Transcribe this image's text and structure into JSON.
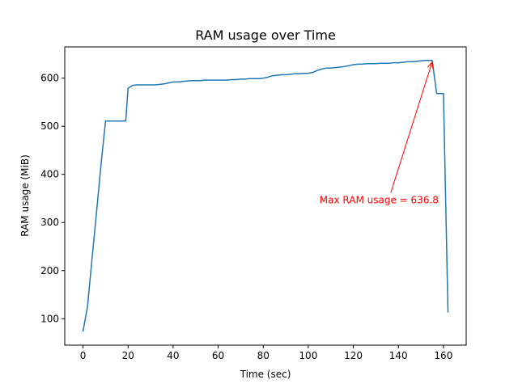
{
  "chart_data": {
    "type": "line",
    "title": "RAM usage over Time",
    "xlabel": "Time (sec)",
    "ylabel": "RAM usage (MiB)",
    "xlim": [
      -8.1,
      170.1
    ],
    "ylim": [
      45,
      665
    ],
    "xticks": [
      0,
      20,
      40,
      60,
      80,
      100,
      120,
      140,
      160
    ],
    "yticks": [
      100,
      200,
      300,
      400,
      500,
      600
    ],
    "grid": false,
    "legend": "none",
    "series": [
      {
        "color": "#1f77b4",
        "x": [
          0,
          2,
          4,
          6,
          8,
          10,
          12,
          14,
          16,
          18,
          19,
          20,
          22,
          24,
          26,
          28,
          30,
          32,
          34,
          36,
          38,
          40,
          42,
          44,
          46,
          48,
          50,
          52,
          54,
          56,
          58,
          60,
          62,
          64,
          66,
          68,
          70,
          72,
          74,
          76,
          78,
          80,
          82,
          84,
          86,
          88,
          90,
          92,
          94,
          96,
          98,
          100,
          102,
          104,
          106,
          108,
          110,
          112,
          114,
          116,
          118,
          120,
          122,
          124,
          126,
          128,
          130,
          132,
          134,
          136,
          138,
          140,
          142,
          144,
          146,
          148,
          150,
          152,
          154,
          155,
          157,
          159,
          160,
          162
        ],
        "y": [
          73,
          125,
          225,
          320,
          420,
          511,
          511,
          511,
          511,
          511,
          511,
          579,
          585,
          586,
          586,
          586,
          586,
          586,
          587,
          588,
          590,
          592,
          592,
          593,
          594,
          595,
          595,
          595,
          596,
          596,
          596,
          596,
          596,
          596,
          597,
          597,
          598,
          598,
          599,
          599,
          599,
          600,
          602,
          605,
          606,
          607,
          607,
          608,
          609,
          609,
          610,
          610,
          612,
          616,
          619,
          621,
          621,
          622,
          623,
          624,
          626,
          628,
          629,
          629,
          630,
          630,
          630,
          631,
          631,
          631,
          632,
          632,
          633,
          634,
          634,
          635,
          636,
          636.8,
          636.8,
          636.8,
          568,
          568,
          568,
          113
        ]
      }
    ],
    "annotation": {
      "text": "Max RAM usage = 636.8",
      "color": "#ff0000",
      "point": [
        155,
        636.8
      ],
      "text_pos": [
        105,
        340
      ]
    }
  }
}
